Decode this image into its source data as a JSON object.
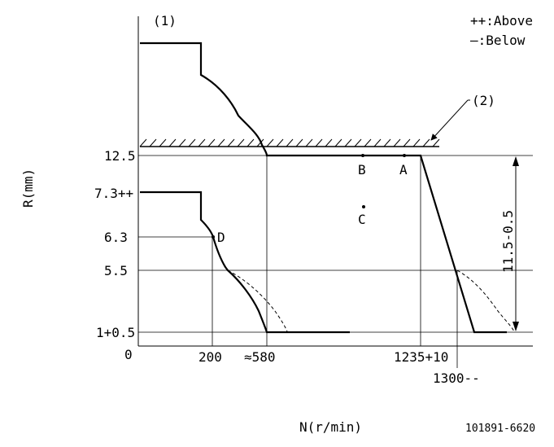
{
  "diagram": {
    "marker_1": "(1)",
    "marker_2": "(2)",
    "legend": {
      "above": "++:Above",
      "below": "—:Below"
    },
    "y_axis_label": "R(mm)",
    "x_axis_label": "N(r/min)",
    "drawing_number": "101891-6620",
    "y_ticks": [
      "12.5",
      "7.3++",
      "6.3",
      "5.5",
      "1+0.5",
      "0"
    ],
    "x_ticks": [
      "200",
      "≈580",
      "1235+10",
      "1300--"
    ],
    "points": {
      "A": "A",
      "B": "B",
      "C": "C",
      "D": "D"
    },
    "dimension": "11.5-0.5"
  }
}
